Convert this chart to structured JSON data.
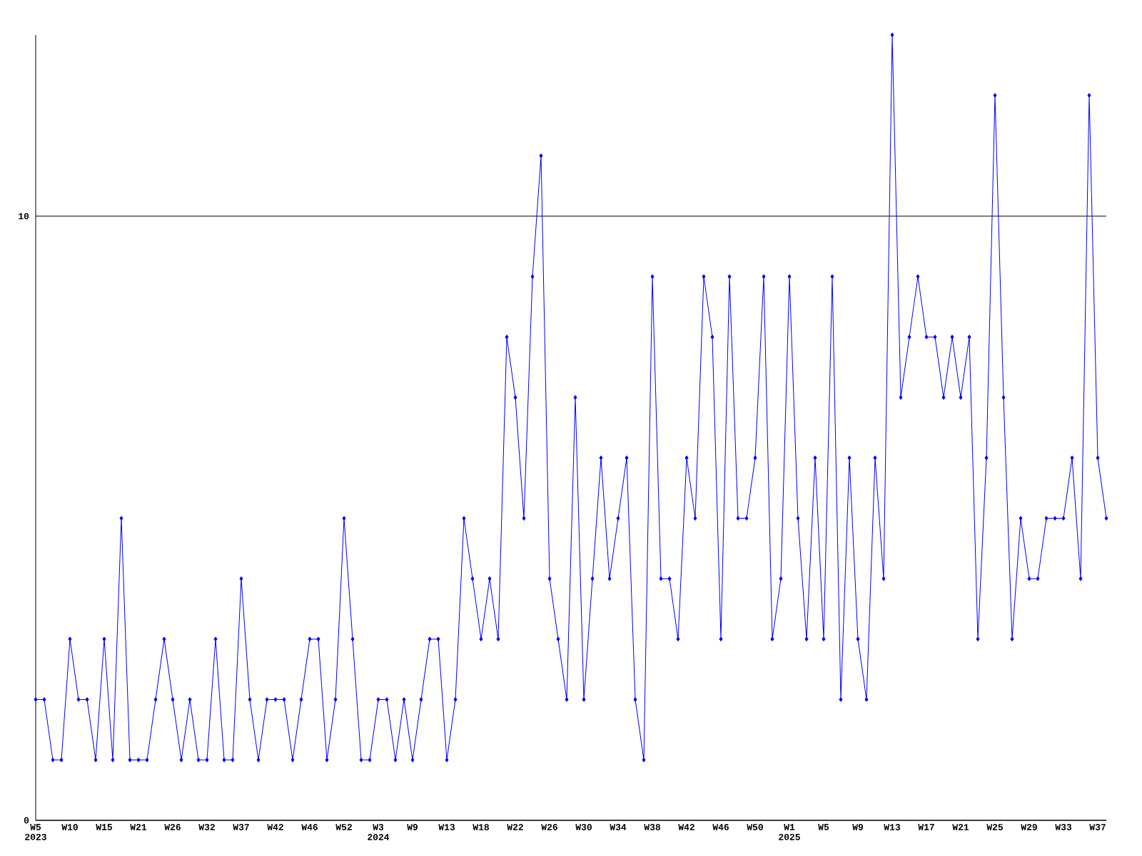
{
  "chart_data": {
    "type": "line",
    "categories": [
      "W5 2023",
      null,
      null,
      null,
      "W10",
      null,
      null,
      null,
      "W15",
      null,
      null,
      null,
      "W21",
      null,
      null,
      null,
      "W26",
      null,
      null,
      null,
      "W32",
      null,
      null,
      null,
      "W37",
      null,
      null,
      null,
      "W42",
      null,
      null,
      null,
      "W46",
      null,
      null,
      null,
      "W52",
      null,
      null,
      null,
      "W3 2024",
      null,
      null,
      null,
      "W9",
      null,
      null,
      null,
      "W13",
      null,
      null,
      null,
      "W18",
      null,
      null,
      null,
      "W22",
      null,
      null,
      null,
      "W26",
      null,
      null,
      null,
      "W30",
      null,
      null,
      null,
      "W34",
      null,
      null,
      null,
      "W38",
      null,
      null,
      null,
      "W42",
      null,
      null,
      null,
      "W46",
      null,
      null,
      null,
      "W50",
      null,
      null,
      null,
      "W1 2025",
      null,
      null,
      null,
      "W5",
      null,
      null,
      null,
      "W9",
      null,
      null,
      null,
      "W13",
      null,
      null,
      null,
      "W17",
      null,
      null,
      null,
      "W21",
      null,
      null,
      null,
      "W25",
      null,
      null,
      null,
      "W29",
      null,
      null,
      null,
      "W33",
      null,
      null,
      null,
      "W37",
      null
    ],
    "series": [
      {
        "color": "#0000ff",
        "values": [
          2,
          2,
          1,
          1,
          3,
          2,
          2,
          1,
          3,
          1,
          5,
          1,
          1,
          1,
          2,
          3,
          2,
          1,
          2,
          1,
          1,
          3,
          1,
          1,
          4,
          2,
          1,
          2,
          2,
          2,
          1,
          2,
          3,
          3,
          1,
          2,
          5,
          3,
          1,
          1,
          2,
          2,
          1,
          2,
          1,
          2,
          3,
          3,
          1,
          2,
          5,
          4,
          3,
          4,
          3,
          8,
          7,
          5,
          9,
          11,
          4,
          3,
          2,
          7,
          2,
          4,
          6,
          4,
          5,
          6,
          2,
          1,
          9,
          4,
          4,
          3,
          6,
          5,
          9,
          8,
          3,
          9,
          5,
          5,
          6,
          9,
          3,
          4,
          9,
          5,
          3,
          6,
          3,
          9,
          2,
          6,
          3,
          2,
          6,
          4,
          13,
          7,
          8,
          9,
          8,
          8,
          7,
          8,
          7,
          8,
          3,
          6,
          12,
          7,
          3,
          5,
          4,
          4,
          5,
          5,
          5,
          6,
          4,
          12,
          6,
          5
        ]
      }
    ],
    "ylim": [
      0,
      13
    ],
    "yticks": [
      0,
      10
    ],
    "grid": "y",
    "marker": "diamond",
    "line_style": "solid"
  }
}
